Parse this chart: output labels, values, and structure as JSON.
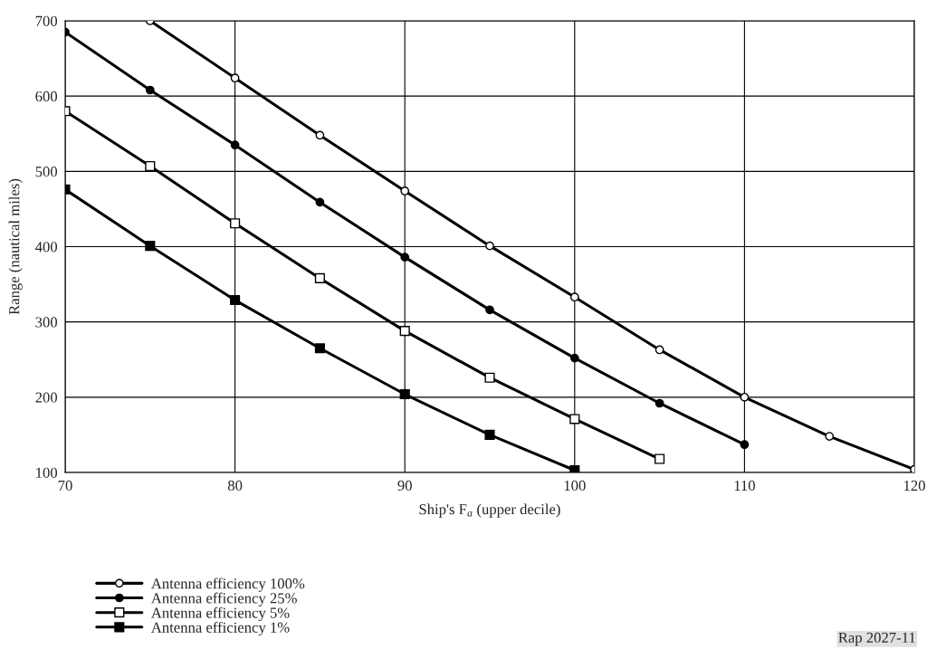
{
  "chart_data": {
    "type": "line",
    "xlabel": "Ship's F$_{a}$ (upper decile)",
    "ylabel": "Range (nautical miles)",
    "xlim": [
      70,
      120
    ],
    "xticks": [
      70,
      80,
      90,
      100,
      110,
      120
    ],
    "ylim": [
      100,
      700
    ],
    "yticks": [
      100,
      200,
      300,
      400,
      500,
      600,
      700
    ],
    "grid": true,
    "legend": "bottom",
    "line_style": "solid",
    "series": [
      {
        "name": "Antenna efficiency 100%",
        "color": "#000000",
        "marker": "circle",
        "x": [
          75,
          80,
          85,
          90,
          95,
          100,
          105,
          110,
          115,
          120
        ],
        "values": [
          700,
          624,
          548,
          474,
          401,
          333,
          263,
          200,
          148,
          104
        ]
      },
      {
        "name": "Antenna efficiency 25%",
        "color": "#000000",
        "marker": "circle",
        "x": [
          70,
          75,
          80,
          85,
          90,
          95,
          100,
          105,
          110
        ],
        "values": [
          685,
          608,
          535,
          459,
          386,
          316,
          252,
          192,
          137
        ]
      },
      {
        "name": "Antenna efficiency 5%",
        "color": "#000000",
        "marker": "square",
        "x": [
          70,
          75,
          80,
          85,
          90,
          95,
          100,
          105
        ],
        "values": [
          580,
          507,
          431,
          358,
          288,
          226,
          171,
          118
        ]
      },
      {
        "name": "Antenna efficiency 1%",
        "color": "#000000",
        "marker": "square",
        "x": [
          70,
          75,
          80,
          85,
          90,
          95,
          100
        ],
        "values": [
          476,
          401,
          329,
          265,
          204,
          150,
          103
        ]
      }
    ],
    "annotations": [
      "Rap 2027-11"
    ]
  }
}
